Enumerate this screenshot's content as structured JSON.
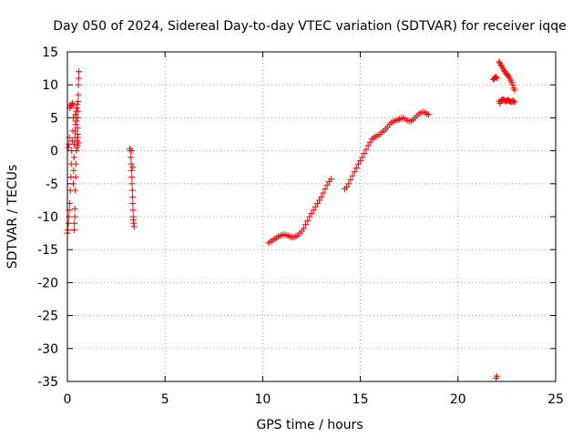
{
  "chart_data": {
    "type": "scatter",
    "title": "Day 050 of 2024, Sidereal Day-to-day VTEC variation (SDTVAR) for receiver iqqe",
    "xlabel": "GPS time / hours",
    "ylabel": "SDTVAR / TECUs",
    "xlim": [
      0,
      25
    ],
    "ylim": [
      -35,
      15
    ],
    "xticks": [
      0,
      5,
      10,
      15,
      20,
      25
    ],
    "yticks": [
      -35,
      -30,
      -25,
      -20,
      -15,
      -10,
      -5,
      0,
      5,
      10,
      15
    ],
    "grid": true,
    "marker": "+",
    "color": "#ff0000",
    "series": [
      {
        "name": "SDTVAR",
        "points": [
          [
            0.0,
            -12.5
          ],
          [
            0.02,
            -12.0
          ],
          [
            0.05,
            -11.0
          ],
          [
            0.08,
            -10.0
          ],
          [
            0.1,
            -9.0
          ],
          [
            0.12,
            -8.0
          ],
          [
            0.15,
            -6.0
          ],
          [
            0.18,
            -4.0
          ],
          [
            0.2,
            -2.0
          ],
          [
            0.22,
            0.0
          ],
          [
            0.25,
            1.5
          ],
          [
            0.28,
            3.0
          ],
          [
            0.3,
            5.0
          ],
          [
            0.32,
            7.0
          ],
          [
            0.05,
            0.5
          ],
          [
            0.08,
            1.0
          ],
          [
            0.1,
            2.0
          ],
          [
            0.12,
            6.5
          ],
          [
            0.15,
            7.0
          ],
          [
            0.2,
            6.8
          ],
          [
            0.25,
            7.2
          ],
          [
            0.3,
            -5.0
          ],
          [
            0.32,
            -3.0
          ],
          [
            0.34,
            -1.0
          ],
          [
            0.35,
            -12.0
          ],
          [
            0.36,
            -11.0
          ],
          [
            0.38,
            -10.0
          ],
          [
            0.38,
            -8.8
          ],
          [
            0.4,
            -6.0
          ],
          [
            0.42,
            -4.0
          ],
          [
            0.44,
            -2.0
          ],
          [
            0.46,
            0.0
          ],
          [
            0.35,
            1.0
          ],
          [
            0.38,
            2.0
          ],
          [
            0.4,
            3.0
          ],
          [
            0.42,
            4.0
          ],
          [
            0.44,
            5.0
          ],
          [
            0.45,
            6.0
          ],
          [
            0.48,
            6.5
          ],
          [
            0.5,
            7.0
          ],
          [
            0.42,
            5.5
          ],
          [
            0.46,
            4.5
          ],
          [
            0.5,
            0.5
          ],
          [
            0.5,
            1.5
          ],
          [
            0.52,
            2.5
          ],
          [
            0.52,
            3.5
          ],
          [
            0.54,
            5.0
          ],
          [
            0.55,
            6.0
          ],
          [
            0.55,
            7.5
          ],
          [
            0.56,
            8.5
          ],
          [
            0.56,
            10.0
          ],
          [
            0.58,
            11.0
          ],
          [
            0.58,
            12.0
          ],
          [
            0.52,
            0.8
          ],
          [
            0.55,
            2.0
          ],
          [
            0.57,
            1.2
          ],
          [
            3.2,
            0.3
          ],
          [
            3.22,
            0.0
          ],
          [
            3.25,
            -1.0
          ],
          [
            3.27,
            -2.0
          ],
          [
            3.28,
            -3.0
          ],
          [
            3.3,
            -4.0
          ],
          [
            3.31,
            -5.0
          ],
          [
            3.33,
            -6.0
          ],
          [
            3.34,
            -7.0
          ],
          [
            3.35,
            -8.0
          ],
          [
            3.36,
            -9.0
          ],
          [
            3.37,
            -10.0
          ],
          [
            3.38,
            -10.5
          ],
          [
            3.4,
            -11.0
          ],
          [
            3.42,
            -11.5
          ],
          [
            3.3,
            0.0
          ],
          [
            3.35,
            -2.5
          ],
          [
            10.3,
            -14.0
          ],
          [
            10.4,
            -13.8
          ],
          [
            10.5,
            -13.6
          ],
          [
            10.6,
            -13.4
          ],
          [
            10.7,
            -13.2
          ],
          [
            10.8,
            -13.0
          ],
          [
            10.9,
            -12.9
          ],
          [
            11.0,
            -12.8
          ],
          [
            11.1,
            -12.7
          ],
          [
            11.2,
            -12.8
          ],
          [
            11.3,
            -12.9
          ],
          [
            11.4,
            -13.0
          ],
          [
            11.5,
            -13.1
          ],
          [
            11.6,
            -13.1
          ],
          [
            11.7,
            -13.0
          ],
          [
            11.8,
            -12.8
          ],
          [
            11.9,
            -12.5
          ],
          [
            12.0,
            -12.2
          ],
          [
            12.1,
            -11.8
          ],
          [
            12.2,
            -11.2
          ],
          [
            12.3,
            -10.6
          ],
          [
            12.4,
            -10.0
          ],
          [
            12.5,
            -9.5
          ],
          [
            12.6,
            -9.0
          ],
          [
            12.7,
            -8.5
          ],
          [
            12.8,
            -8.0
          ],
          [
            12.9,
            -7.5
          ],
          [
            13.0,
            -7.0
          ],
          [
            13.1,
            -6.4
          ],
          [
            13.2,
            -5.8
          ],
          [
            13.3,
            -5.2
          ],
          [
            13.4,
            -4.7
          ],
          [
            13.5,
            -4.3
          ],
          [
            14.2,
            -5.8
          ],
          [
            14.3,
            -5.5
          ],
          [
            14.4,
            -5.0
          ],
          [
            14.5,
            -4.4
          ],
          [
            14.6,
            -3.8
          ],
          [
            14.7,
            -3.2
          ],
          [
            14.8,
            -2.6
          ],
          [
            14.9,
            -2.0
          ],
          [
            15.0,
            -1.5
          ],
          [
            15.1,
            -1.0
          ],
          [
            15.2,
            -0.4
          ],
          [
            15.3,
            0.2
          ],
          [
            15.4,
            0.8
          ],
          [
            15.5,
            1.3
          ],
          [
            15.6,
            1.8
          ],
          [
            15.7,
            2.0
          ],
          [
            15.8,
            2.2
          ],
          [
            15.9,
            2.3
          ],
          [
            16.0,
            2.5
          ],
          [
            16.1,
            2.8
          ],
          [
            16.2,
            3.0
          ],
          [
            16.3,
            3.3
          ],
          [
            16.4,
            3.6
          ],
          [
            16.5,
            4.0
          ],
          [
            16.6,
            4.3
          ],
          [
            16.7,
            4.5
          ],
          [
            16.8,
            4.6
          ],
          [
            16.9,
            4.7
          ],
          [
            17.0,
            4.8
          ],
          [
            17.1,
            4.9
          ],
          [
            17.2,
            5.0
          ],
          [
            17.3,
            4.8
          ],
          [
            17.4,
            4.6
          ],
          [
            17.5,
            4.5
          ],
          [
            17.6,
            4.5
          ],
          [
            17.7,
            4.7
          ],
          [
            17.8,
            5.0
          ],
          [
            17.9,
            5.3
          ],
          [
            18.0,
            5.6
          ],
          [
            18.1,
            5.8
          ],
          [
            18.2,
            5.9
          ],
          [
            18.3,
            5.8
          ],
          [
            18.4,
            5.6
          ],
          [
            18.5,
            5.5
          ],
          [
            21.8,
            10.8
          ],
          [
            21.85,
            11.0
          ],
          [
            21.9,
            11.1
          ],
          [
            21.95,
            11.2
          ],
          [
            22.0,
            11.0
          ],
          [
            21.95,
            -34.5
          ],
          [
            22.0,
            -34.2
          ],
          [
            22.1,
            13.5
          ],
          [
            22.15,
            13.3
          ],
          [
            22.2,
            13.0
          ],
          [
            22.25,
            12.8
          ],
          [
            22.3,
            12.5
          ],
          [
            22.35,
            12.2
          ],
          [
            22.4,
            12.0
          ],
          [
            22.45,
            11.8
          ],
          [
            22.5,
            11.6
          ],
          [
            22.55,
            11.4
          ],
          [
            22.6,
            11.3
          ],
          [
            22.65,
            11.0
          ],
          [
            22.7,
            10.7
          ],
          [
            22.75,
            10.4
          ],
          [
            22.8,
            10.0
          ],
          [
            22.85,
            9.5
          ],
          [
            22.9,
            9.2
          ],
          [
            22.1,
            7.5
          ],
          [
            22.15,
            7.2
          ],
          [
            22.2,
            7.6
          ],
          [
            22.25,
            7.7
          ],
          [
            22.3,
            7.8
          ],
          [
            22.35,
            7.7
          ],
          [
            22.4,
            7.6
          ],
          [
            22.45,
            7.5
          ],
          [
            22.5,
            7.6
          ],
          [
            22.55,
            7.7
          ],
          [
            22.6,
            7.6
          ],
          [
            22.65,
            7.5
          ],
          [
            22.7,
            7.5
          ],
          [
            22.75,
            7.4
          ],
          [
            22.8,
            7.6
          ],
          [
            22.85,
            7.5
          ],
          [
            22.9,
            7.4
          ]
        ]
      }
    ]
  }
}
